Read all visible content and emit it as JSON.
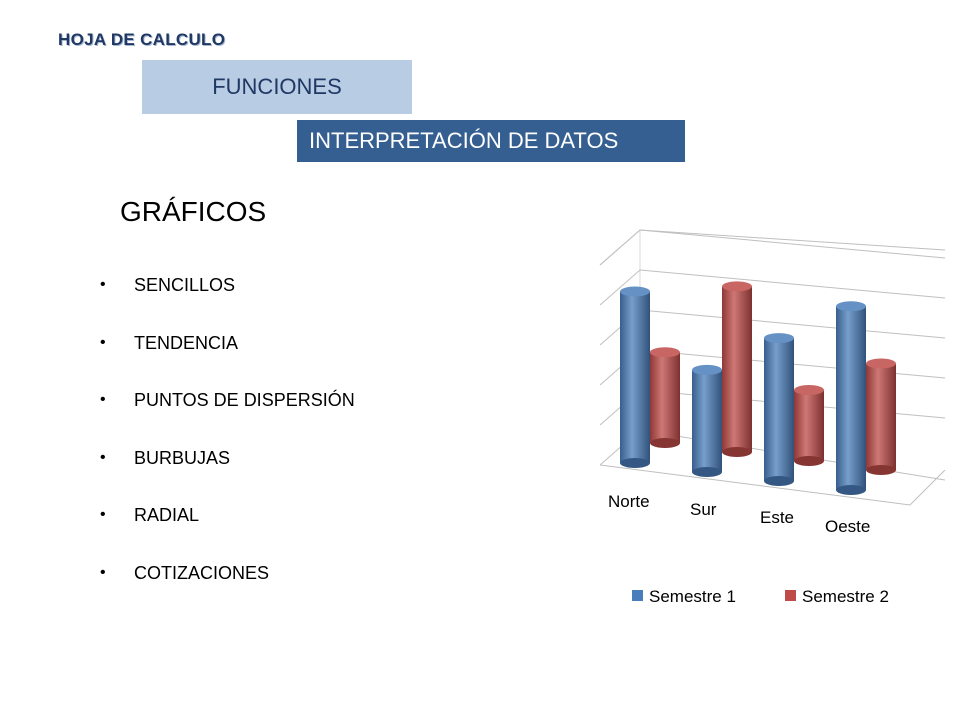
{
  "header": {
    "title": "HOJA DE CALCULO"
  },
  "boxes": {
    "functions": "FUNCIONES",
    "interpretation": "INTERPRETACIÓN DE DATOS"
  },
  "section": {
    "title": "GRÁFICOS"
  },
  "bullets": [
    "SENCILLOS",
    "TENDENCIA",
    "PUNTOS DE DISPERSIÓN",
    "BURBUJAS",
    "RADIAL",
    "COTIZACIONES"
  ],
  "bullet_symbol": "•",
  "chart_data": {
    "type": "bar",
    "subtype": "3d-cylinder",
    "categories": [
      "Norte",
      "Sur",
      "Este",
      "Oeste"
    ],
    "series": [
      {
        "name": "Semestre 1",
        "values": [
          4.2,
          2.5,
          3.5,
          4.5
        ],
        "color": "#4a7ebb"
      },
      {
        "name": "Semestre 2",
        "values": [
          2.3,
          4.2,
          1.8,
          2.7
        ],
        "color": "#be4b48"
      }
    ],
    "ylim": [
      0,
      5
    ],
    "grid": true,
    "legend": "bottom"
  }
}
